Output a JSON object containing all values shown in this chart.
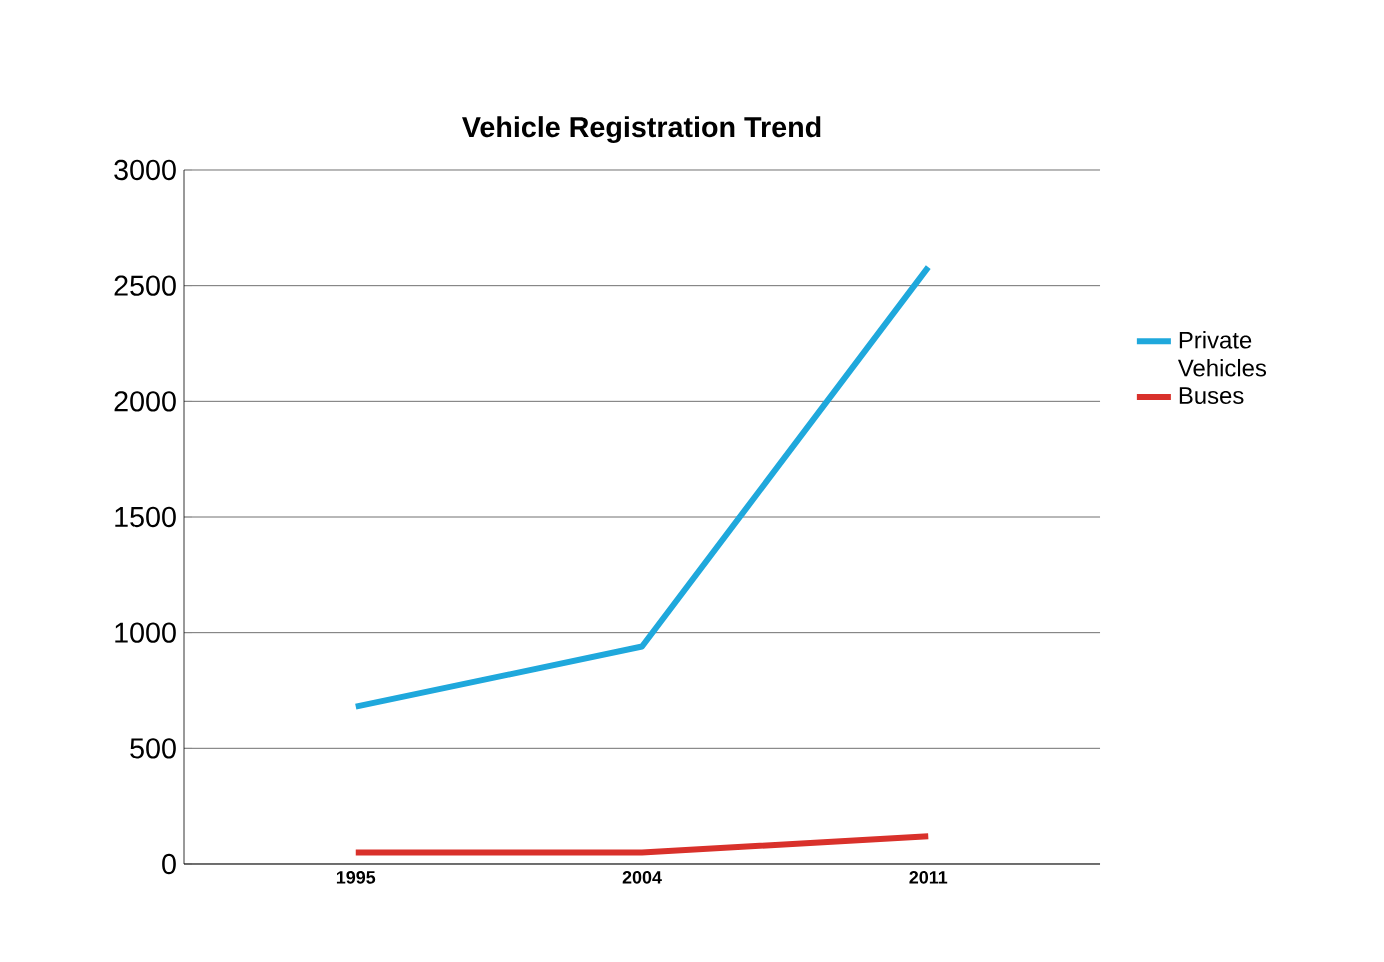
{
  "chart_data": {
    "type": "line",
    "title": "Vehicle Registration Trend",
    "categories": [
      "1995",
      "2004",
      "2011"
    ],
    "series": [
      {
        "name": "Private Vehicles",
        "color": "#1fa8dc",
        "values": [
          680,
          940,
          2580
        ]
      },
      {
        "name": "Buses",
        "color": "#d9312b",
        "values": [
          50,
          50,
          120
        ]
      }
    ],
    "ylim": [
      0,
      3000
    ],
    "yticks": [
      0,
      500,
      1000,
      1500,
      2000,
      2500,
      3000
    ],
    "grid": "y",
    "legend": "right",
    "marker": "none",
    "line_style": "solid"
  }
}
